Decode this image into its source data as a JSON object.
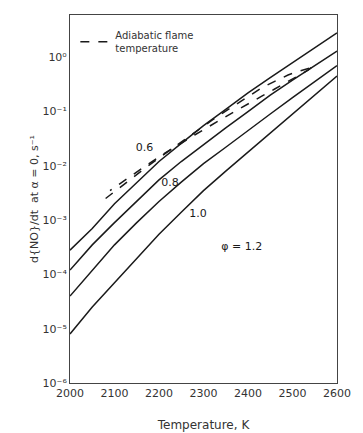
{
  "chart_data": {
    "type": "line",
    "xlabel": "Temperature, K",
    "ylabel": "d{NO}/dt  at α = 0, s⁻¹",
    "log": "y",
    "grid": false,
    "legend": "upper left",
    "xlim": [
      2000,
      2600
    ],
    "xticks": [
      2000,
      2100,
      2200,
      2300,
      2400,
      2500,
      2600
    ],
    "ylim": [
      1e-06,
      6
    ],
    "yticks": [
      {
        "value": 1e-06,
        "label": "10⁻⁶"
      },
      {
        "value": 1e-05,
        "label": "10⁻⁵"
      },
      {
        "value": 0.0001,
        "label": "10⁻⁴"
      },
      {
        "value": 0.001,
        "label": "10⁻³"
      },
      {
        "value": 0.01,
        "label": "10⁻²"
      },
      {
        "value": 0.1,
        "label": "10⁻¹"
      },
      {
        "value": 1,
        "label": "10⁰"
      }
    ],
    "series": [
      {
        "color": "#1a1a1a",
        "line_style": "solid",
        "x": [
          2000,
          2050,
          2100,
          2150,
          2200,
          2250,
          2300,
          2350,
          2400,
          2450,
          2500,
          2550,
          2600
        ],
        "values": [
          0.00028,
          0.0007,
          0.002,
          0.005,
          0.012,
          0.026,
          0.055,
          0.11,
          0.22,
          0.42,
          0.8,
          1.5,
          2.8
        ]
      },
      {
        "color": "#1a1a1a",
        "line_style": "solid",
        "x": [
          2000,
          2050,
          2100,
          2150,
          2200,
          2250,
          2300,
          2350,
          2400,
          2450,
          2500,
          2550,
          2600
        ],
        "values": [
          0.00012,
          0.00035,
          0.0009,
          0.0022,
          0.0055,
          0.012,
          0.025,
          0.05,
          0.1,
          0.2,
          0.38,
          0.7,
          1.3
        ]
      },
      {
        "color": "#1a1a1a",
        "line_style": "solid",
        "x": [
          2000,
          2050,
          2100,
          2150,
          2200,
          2250,
          2300,
          2350,
          2400,
          2450,
          2500,
          2550,
          2600
        ],
        "values": [
          4e-05,
          0.00012,
          0.00035,
          0.0009,
          0.0022,
          0.005,
          0.011,
          0.022,
          0.045,
          0.09,
          0.18,
          0.35,
          0.7
        ]
      },
      {
        "color": "#1a1a1a",
        "line_style": "solid",
        "x": [
          2000,
          2050,
          2100,
          2150,
          2200,
          2250,
          2300,
          2350,
          2400,
          2450,
          2500,
          2540,
          2570,
          2600
        ],
        "values": [
          8e-06,
          2.5e-05,
          7e-05,
          0.0002,
          0.00055,
          0.0014,
          0.0035,
          0.008,
          0.018,
          0.04,
          0.09,
          0.17,
          0.28,
          0.45
        ]
      },
      {
        "name": "Adiabatic flame\ntemperature",
        "color": "#1a1a1a",
        "line_style": "dashed",
        "x": [
          2080,
          2120,
          2160,
          2200,
          2240,
          2280,
          2320,
          2360,
          2400,
          2430,
          2460,
          2490,
          2510,
          2525,
          2535,
          2540,
          2542
        ],
        "values": [
          0.0025,
          0.0045,
          0.008,
          0.014,
          0.024,
          0.042,
          0.07,
          0.115,
          0.19,
          0.27,
          0.36,
          0.47,
          0.54,
          0.59,
          0.62,
          0.64,
          0.645
        ]
      },
      {
        "color": "#1a1a1a",
        "line_style": "dashed",
        "x": [
          2542,
          2535,
          2525,
          2510,
          2490,
          2460,
          2430,
          2400,
          2370,
          2340,
          2310,
          2280,
          2250,
          2210,
          2170,
          2130,
          2090
        ],
        "values": [
          0.645,
          0.58,
          0.52,
          0.44,
          0.35,
          0.26,
          0.19,
          0.14,
          0.1,
          0.072,
          0.052,
          0.037,
          0.026,
          0.0165,
          0.01,
          0.006,
          0.0035
        ]
      }
    ],
    "annotations": [
      {
        "text": "0.6",
        "x": 2148,
        "y": 0.021
      },
      {
        "text": "0.8",
        "x": 2205,
        "y": 0.0048
      },
      {
        "text": "1.0",
        "x": 2268,
        "y": 0.0013
      },
      {
        "text": "φ = 1.2",
        "x": 2340,
        "y": 0.00032
      }
    ]
  }
}
